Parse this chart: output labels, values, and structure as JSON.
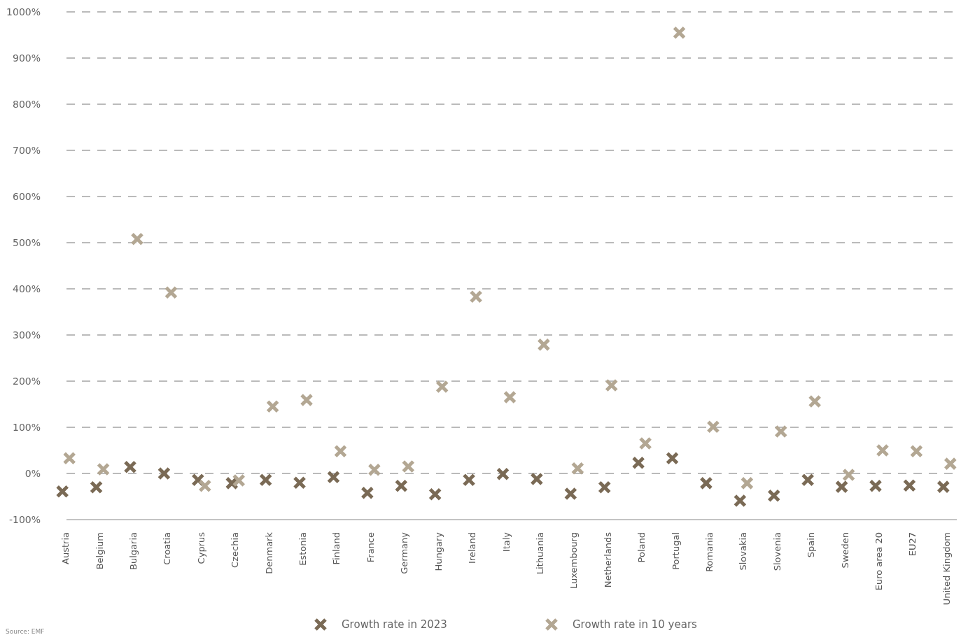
{
  "chart_data": {
    "type": "scatter",
    "categories": [
      "Austria",
      "Belgium",
      "Bulgaria",
      "Croatia",
      "Cyprus",
      "Czechia",
      "Denmark",
      "Estonia",
      "Finland",
      "France",
      "Germany",
      "Hungary",
      "Ireland",
      "Italy",
      "Lithuania",
      "Luxembourg",
      "Netherlands",
      "Poland",
      "Portugal",
      "Romania",
      "Slovakia",
      "Slovenia",
      "Spain",
      "Sweden",
      "Euro area 20",
      "EU27",
      "United Kingdom"
    ],
    "series": [
      {
        "name": "Growth rate in 2023",
        "color": "#7a6a55",
        "values": [
          -39,
          -30,
          14,
          0,
          -14,
          -21,
          -14,
          -20,
          -8,
          -42,
          -27,
          -45,
          -14,
          -1,
          -12,
          -44,
          -30,
          23,
          33,
          -21,
          -59,
          -48,
          -14,
          -29,
          -27,
          -26,
          -29
        ]
      },
      {
        "name": "Growth rate in 10 years",
        "color": "#b3a793",
        "values": [
          33,
          9,
          508,
          392,
          -27,
          -15,
          145,
          159,
          48,
          8,
          15,
          188,
          383,
          165,
          279,
          11,
          191,
          65,
          955,
          101,
          -21,
          91,
          156,
          -3,
          50,
          48,
          21
        ]
      }
    ],
    "ylim": [
      -100,
      1000
    ],
    "yticks": [
      {
        "value": -100,
        "label": "-100%"
      },
      {
        "value": 0,
        "label": "0%"
      },
      {
        "value": 100,
        "label": "100%"
      },
      {
        "value": 200,
        "label": "200%"
      },
      {
        "value": 300,
        "label": "300%"
      },
      {
        "value": 400,
        "label": "400%"
      },
      {
        "value": 500,
        "label": "500%"
      },
      {
        "value": 600,
        "label": "600%"
      },
      {
        "value": 700,
        "label": "700%"
      },
      {
        "value": 800,
        "label": "800%"
      },
      {
        "value": 900,
        "label": "900%"
      },
      {
        "value": 1000,
        "label": "1000%"
      }
    ],
    "grid": "y",
    "legend": "bottom",
    "marker": "cross",
    "annotations": [
      "Source: EMF"
    ]
  }
}
